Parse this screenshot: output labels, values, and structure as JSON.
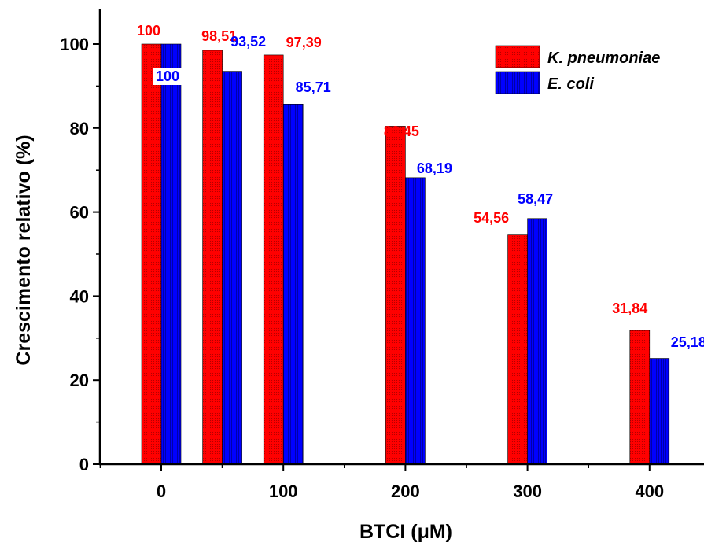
{
  "chart_data": {
    "type": "bar",
    "xlabel": "BTCI (μM)",
    "ylabel": "Crescimento relativo (%)",
    "ylim": [
      0,
      110
    ],
    "yticks": [
      0,
      20,
      40,
      60,
      80,
      100
    ],
    "xlim": [
      -50,
      430
    ],
    "xticks": [
      0,
      100,
      200,
      300,
      400
    ],
    "x": [
      0,
      50,
      100,
      200,
      300,
      400
    ],
    "legend_position": "top-right",
    "series": [
      {
        "name": "K. pneumoniae",
        "color": "#ff0000",
        "label_color": "#ff0000",
        "values": [
          100,
          98.51,
          97.39,
          80.45,
          54.56,
          31.84
        ],
        "labels": [
          "100",
          "98,51",
          "97,39",
          "80,45",
          "54,56",
          "31,84"
        ]
      },
      {
        "name": "E. coli",
        "color": "#0000ff",
        "label_color": "#0000ff",
        "values": [
          100,
          93.52,
          85.71,
          68.19,
          58.47,
          25.18
        ],
        "labels": [
          "100",
          "93,52",
          "85,71",
          "68,19",
          "58,47",
          "25,18"
        ]
      }
    ]
  }
}
